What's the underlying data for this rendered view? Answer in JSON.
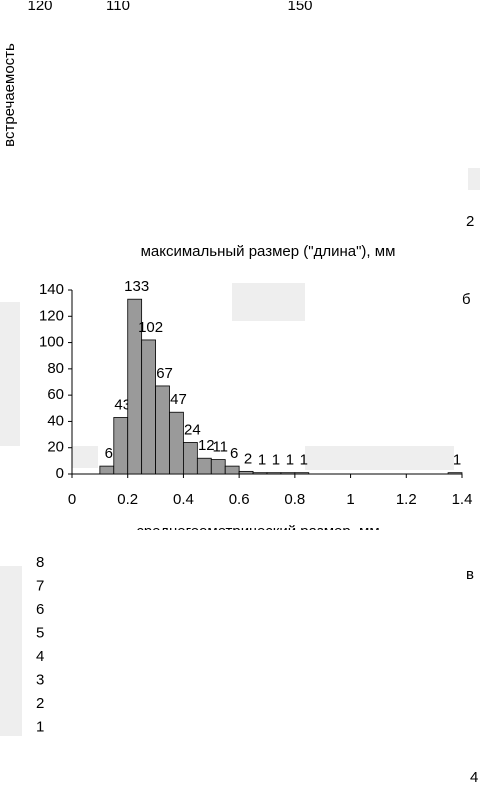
{
  "top_fragment": {
    "texts": [
      "120",
      "110",
      "150"
    ],
    "ylabel": "встречаемость",
    "xlabel": "максимальный размер (\"длина\"), мм",
    "right_text": "2"
  },
  "chart_data": {
    "type": "histogram",
    "panel_label": "б",
    "xlabel": "среднегеометрический размер, мм",
    "bins": [
      0.1,
      0.15,
      0.2,
      0.25,
      0.3,
      0.35,
      0.4,
      0.45,
      0.5,
      0.55,
      0.6,
      0.65,
      0.7,
      0.75,
      0.8,
      0.85,
      0.9,
      0.95,
      1,
      1.05,
      1.1,
      1.15,
      1.2,
      1.25,
      1.3,
      1.35,
      1.4
    ],
    "values": [
      6,
      43,
      133,
      102,
      67,
      47,
      24,
      12,
      11,
      6,
      2,
      1,
      1,
      1,
      1,
      0,
      0,
      0,
      0,
      0,
      0,
      0,
      0,
      0,
      0,
      1
    ],
    "color": "#9a9a9a",
    "xlim": [
      0,
      1.4
    ],
    "xticks": [
      0,
      0.2,
      0.4,
      0.6,
      0.8,
      1,
      1.2,
      1.4
    ],
    "ylim": [
      0,
      140
    ],
    "yticks": [
      0,
      20,
      40,
      60,
      80,
      100,
      120,
      140
    ]
  },
  "bottom_fragment": {
    "panel_label": "в",
    "ticks": [
      "8",
      "7",
      "6",
      "5",
      "4",
      "3",
      "2",
      "1"
    ],
    "right_text": "4"
  }
}
